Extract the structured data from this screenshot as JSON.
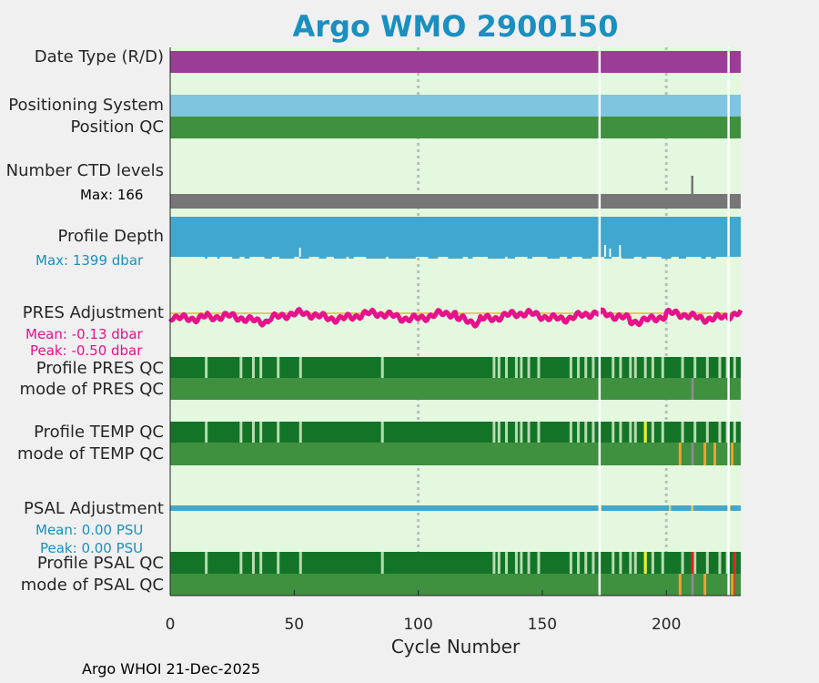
{
  "title": "Argo WMO 2900150",
  "labels": {
    "date_type": "Date Type (R/D)",
    "positioning_system": "Positioning System",
    "position_qc": "Position QC",
    "ctd_levels": "Number CTD levels",
    "ctd_max": "Max: 166",
    "profile_depth": "Profile Depth",
    "depth_max": "Max: 1399 dbar",
    "pres_adj": "PRES Adjustment",
    "pres_mean": "Mean: -0.13 dbar",
    "pres_peak": "Peak: -0.50 dbar",
    "profile_pres_qc": "Profile PRES QC",
    "mode_pres_qc": "mode of PRES QC",
    "profile_temp_qc": "Profile TEMP QC",
    "mode_temp_qc": "mode of TEMP QC",
    "psal_adj": "PSAL Adjustment",
    "psal_mean": "Mean: 0.00 PSU",
    "psal_peak": "Peak: 0.00 PSU",
    "profile_psal_qc": "Profile PSAL QC",
    "mode_psal_qc": "mode of PSAL QC"
  },
  "colors": {
    "plot_bg": "#e3f8df",
    "date_type": "#9b3d97",
    "positioning": "#7fc5df",
    "qc_good": "#3f903f",
    "qc_dark": "#137428",
    "qc_light": "#b9dbb0",
    "ctd": "#767676",
    "depth": "#40a8cf",
    "pres_line": "#e6128b",
    "psal_line": "#40a8cf",
    "orange": "#f0a030",
    "yellow": "#f0f020",
    "red": "#e02020",
    "title": "#1a8fc0"
  },
  "chart_data": {
    "type": "qc-strip",
    "title": "Argo WMO 2900150",
    "xlabel": "Cycle Number",
    "xlim": [
      0,
      230
    ],
    "xticks": [
      "0",
      "50",
      "100",
      "150",
      "200"
    ],
    "xtick_values": [
      0,
      50,
      100,
      150,
      200
    ],
    "gridlines": [
      100,
      200
    ],
    "missing_cycles": [
      173,
      225
    ],
    "ctd_levels_max": 166,
    "ctd_spike_cycle": 210,
    "profile_depth_max_dbar": 1399,
    "pres_adjustment_mean_dbar": -0.13,
    "pres_adjustment_peak_dbar": -0.5,
    "psal_adjustment_mean_psu": 0.0,
    "psal_adjustment_peak_psu": 0.0,
    "profile_pres_qc_breaks": [
      14,
      28,
      33,
      36,
      43,
      52,
      85,
      130,
      132,
      135,
      139,
      141,
      144,
      148,
      161,
      164,
      167,
      170,
      178,
      181,
      185,
      187,
      191,
      194,
      198,
      206,
      211,
      216,
      221,
      224,
      227
    ],
    "mode_pres_qc_grey": [
      210
    ],
    "mode_temp_qc_marks": [
      {
        "cycle": 205,
        "qc": "orange"
      },
      {
        "cycle": 210,
        "qc": "grey"
      },
      {
        "cycle": 215,
        "qc": "orange"
      },
      {
        "cycle": 219,
        "qc": "orange"
      },
      {
        "cycle": 226,
        "qc": "orange"
      }
    ],
    "temp_qc_yellow": [
      191
    ],
    "psal_qc_red": [
      210,
      227
    ],
    "psal_qc_yellow": [
      191
    ],
    "footer": "Argo WHOI 21-Dec-2025"
  }
}
